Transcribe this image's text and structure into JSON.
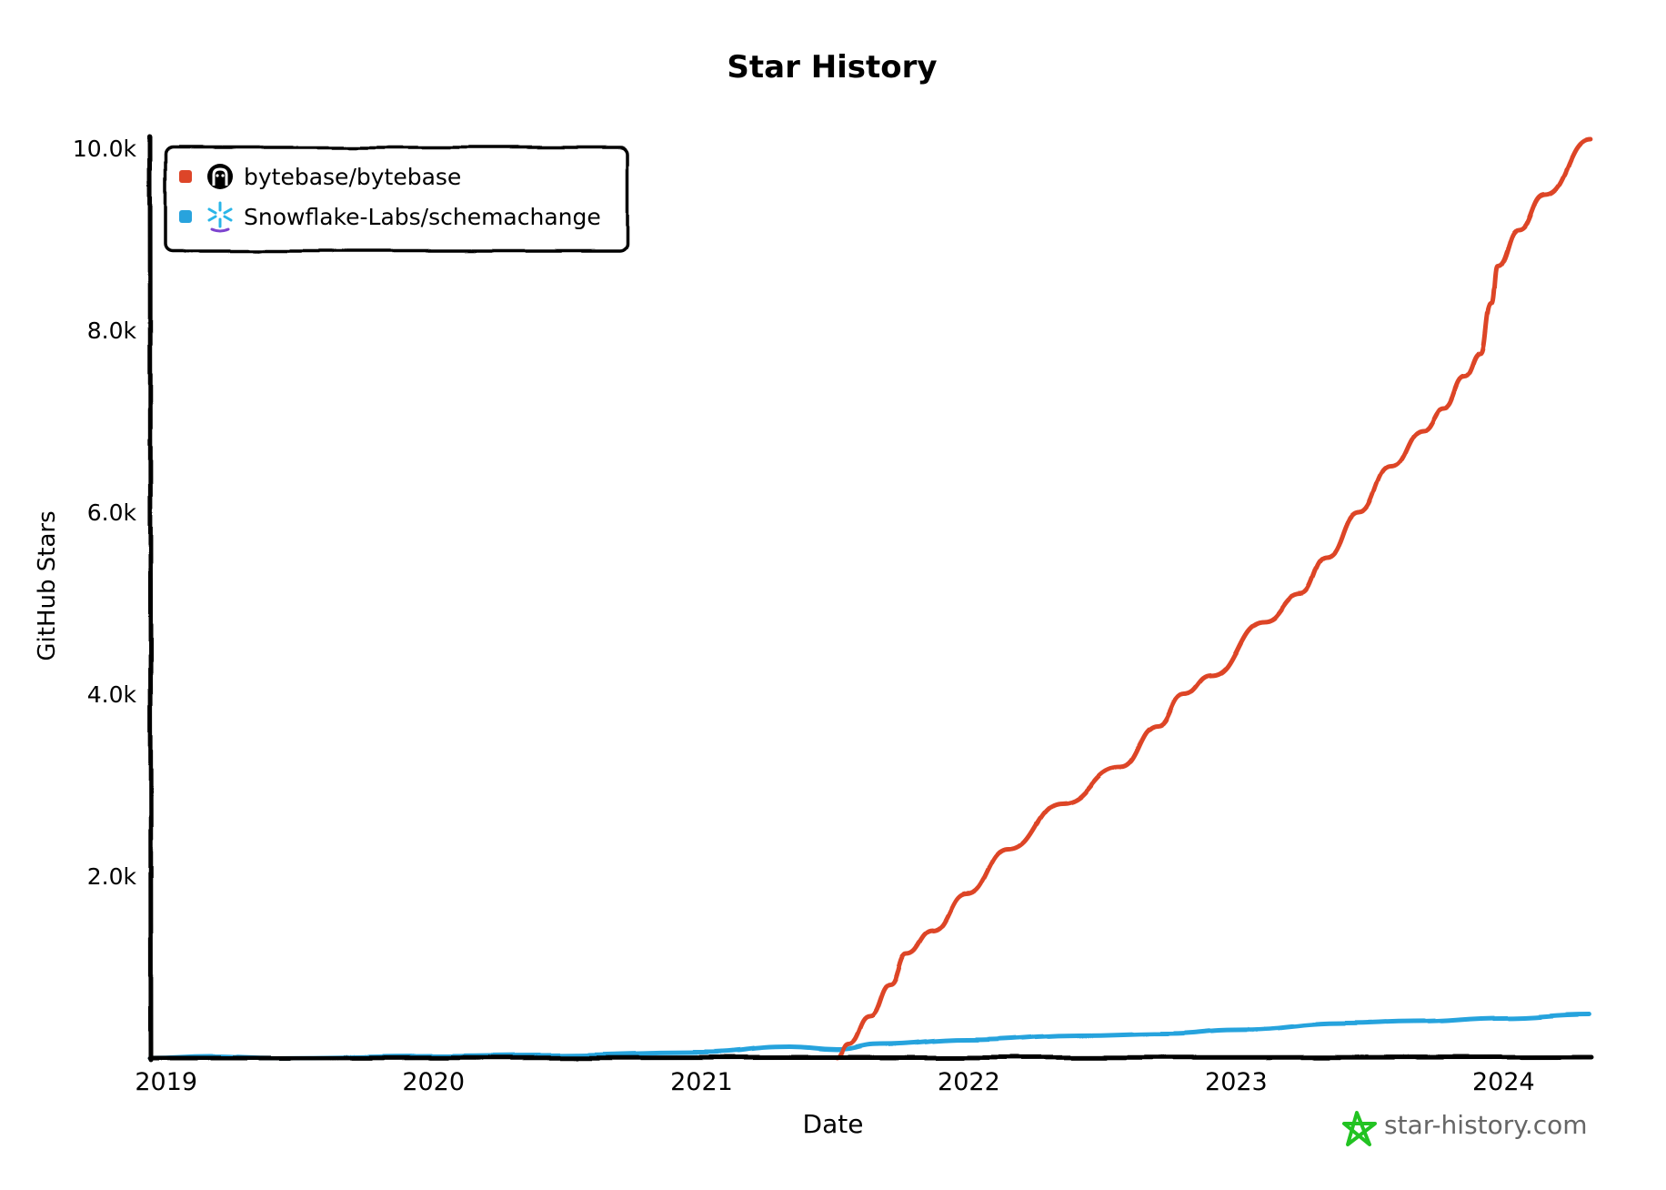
{
  "chart_data": {
    "type": "line",
    "title": "Star History",
    "xlabel": "Date",
    "ylabel": "GitHub Stars",
    "x_ticks": [
      "2019",
      "2020",
      "2021",
      "2022",
      "2023",
      "2024"
    ],
    "y_ticks": [
      "2.0k",
      "4.0k",
      "6.0k",
      "8.0k",
      "10.0k"
    ],
    "y_tick_values": [
      2000,
      4000,
      6000,
      8000,
      10000
    ],
    "xlim": [
      "2018-12-10",
      "2024-04-30"
    ],
    "ylim": [
      0,
      10000
    ],
    "grid": false,
    "legend_position": "top-left",
    "style": "hand-drawn",
    "series": [
      {
        "name": "bytebase/bytebase",
        "icon": "github-icon",
        "color": "#dd4528",
        "points": [
          [
            "2021-07-05",
            0
          ],
          [
            "2021-07-20",
            150
          ],
          [
            "2021-08-18",
            450
          ],
          [
            "2021-09-16",
            800
          ],
          [
            "2021-10-08",
            1150
          ],
          [
            "2021-11-13",
            1400
          ],
          [
            "2021-12-28",
            1800
          ],
          [
            "2022-02-24",
            2300
          ],
          [
            "2022-05-08",
            2800
          ],
          [
            "2022-07-27",
            3200
          ],
          [
            "2022-09-16",
            3650
          ],
          [
            "2022-10-22",
            4000
          ],
          [
            "2022-11-28",
            4200
          ],
          [
            "2023-02-08",
            4800
          ],
          [
            "2023-03-30",
            5100
          ],
          [
            "2023-05-05",
            5500
          ],
          [
            "2023-06-18",
            6000
          ],
          [
            "2023-07-31",
            6500
          ],
          [
            "2023-09-13",
            6900
          ],
          [
            "2023-10-12",
            7150
          ],
          [
            "2023-11-10",
            7500
          ],
          [
            "2023-12-02",
            7750
          ],
          [
            "2023-12-16",
            8300
          ],
          [
            "2023-12-24",
            8700
          ],
          [
            "2024-01-22",
            9100
          ],
          [
            "2024-02-27",
            9500
          ],
          [
            "2024-04-28",
            10100
          ]
        ]
      },
      {
        "name": "Snowflake-Labs/schemachange",
        "icon": "snowflake-icon",
        "color": "#28a3dd",
        "points": [
          [
            "2018-12-10",
            0
          ],
          [
            "2019-03-01",
            20
          ],
          [
            "2019-06-01",
            0
          ],
          [
            "2020-01-01",
            20
          ],
          [
            "2020-06-01",
            30
          ],
          [
            "2021-01-01",
            60
          ],
          [
            "2021-05-01",
            120
          ],
          [
            "2021-07-05",
            90
          ],
          [
            "2021-09-01",
            150
          ],
          [
            "2022-01-01",
            200
          ],
          [
            "2022-06-01",
            250
          ],
          [
            "2022-10-01",
            270
          ],
          [
            "2023-01-01",
            310
          ],
          [
            "2023-06-01",
            380
          ],
          [
            "2023-09-01",
            400
          ],
          [
            "2024-01-01",
            440
          ],
          [
            "2024-04-28",
            480
          ]
        ]
      }
    ]
  },
  "watermark": {
    "icon": "star-icon",
    "text": "star-history.com",
    "icon_color": "#22c322"
  }
}
